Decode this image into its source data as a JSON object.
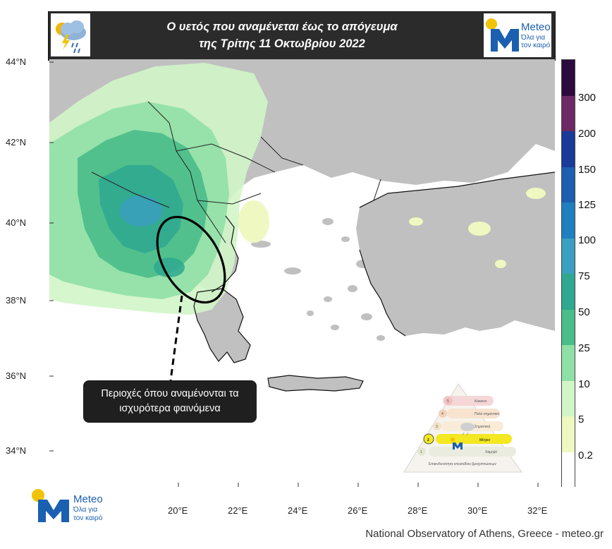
{
  "header": {
    "title_line1": "Ο υετός που αναμένεται έως το απόγευμα",
    "title_line2": "της Τρίτης 11 Οκτωβρίου 2022"
  },
  "logo": {
    "brand": "Meteo",
    "slogan_line1": "Όλα για",
    "slogan_line2": "τον καιρό"
  },
  "map": {
    "lat_labels": [
      "44°N",
      "42°N",
      "40°N",
      "38°N",
      "36°N",
      "34°N"
    ],
    "lon_labels": [
      "20°E",
      "22°E",
      "24°E",
      "26°E",
      "28°E",
      "30°E",
      "32°E"
    ],
    "colors": {
      "sea": "#ffffff",
      "land": "#c0c0c0",
      "border": "#222222"
    }
  },
  "colorbar": {
    "labels": [
      "300",
      "200",
      "150",
      "125",
      "100",
      "75",
      "50",
      "25",
      "10",
      "5",
      "0.2"
    ],
    "colors": [
      "#2d0a3d",
      "#6b2a63",
      "#1a3a9a",
      "#1c5fae",
      "#1f7fbf",
      "#3a9fc0",
      "#2fa88f",
      "#49bd8a",
      "#8fe0a6",
      "#d2f5c8",
      "#eff8c0",
      "#ffffff"
    ]
  },
  "annotation": {
    "line1": "Περιοχές όπου αναμένονται τα",
    "line2": "ισχυρότερα φαινόμενα"
  },
  "warning_triangle": {
    "levels": [
      "1",
      "2",
      "3",
      "4",
      "5"
    ],
    "level_names": [
      "Κόκκινο",
      "Πολύ σημαντικό",
      "Σημαντικό",
      "Μέτριο",
      "Χαμηλό"
    ],
    "active_level": "2",
    "caption": "Επικινδυνότητα επεισοδίου βροχοπτώσεων"
  },
  "footer": {
    "credit": "National Observatory of Athens, Greece - meteo.gr"
  }
}
